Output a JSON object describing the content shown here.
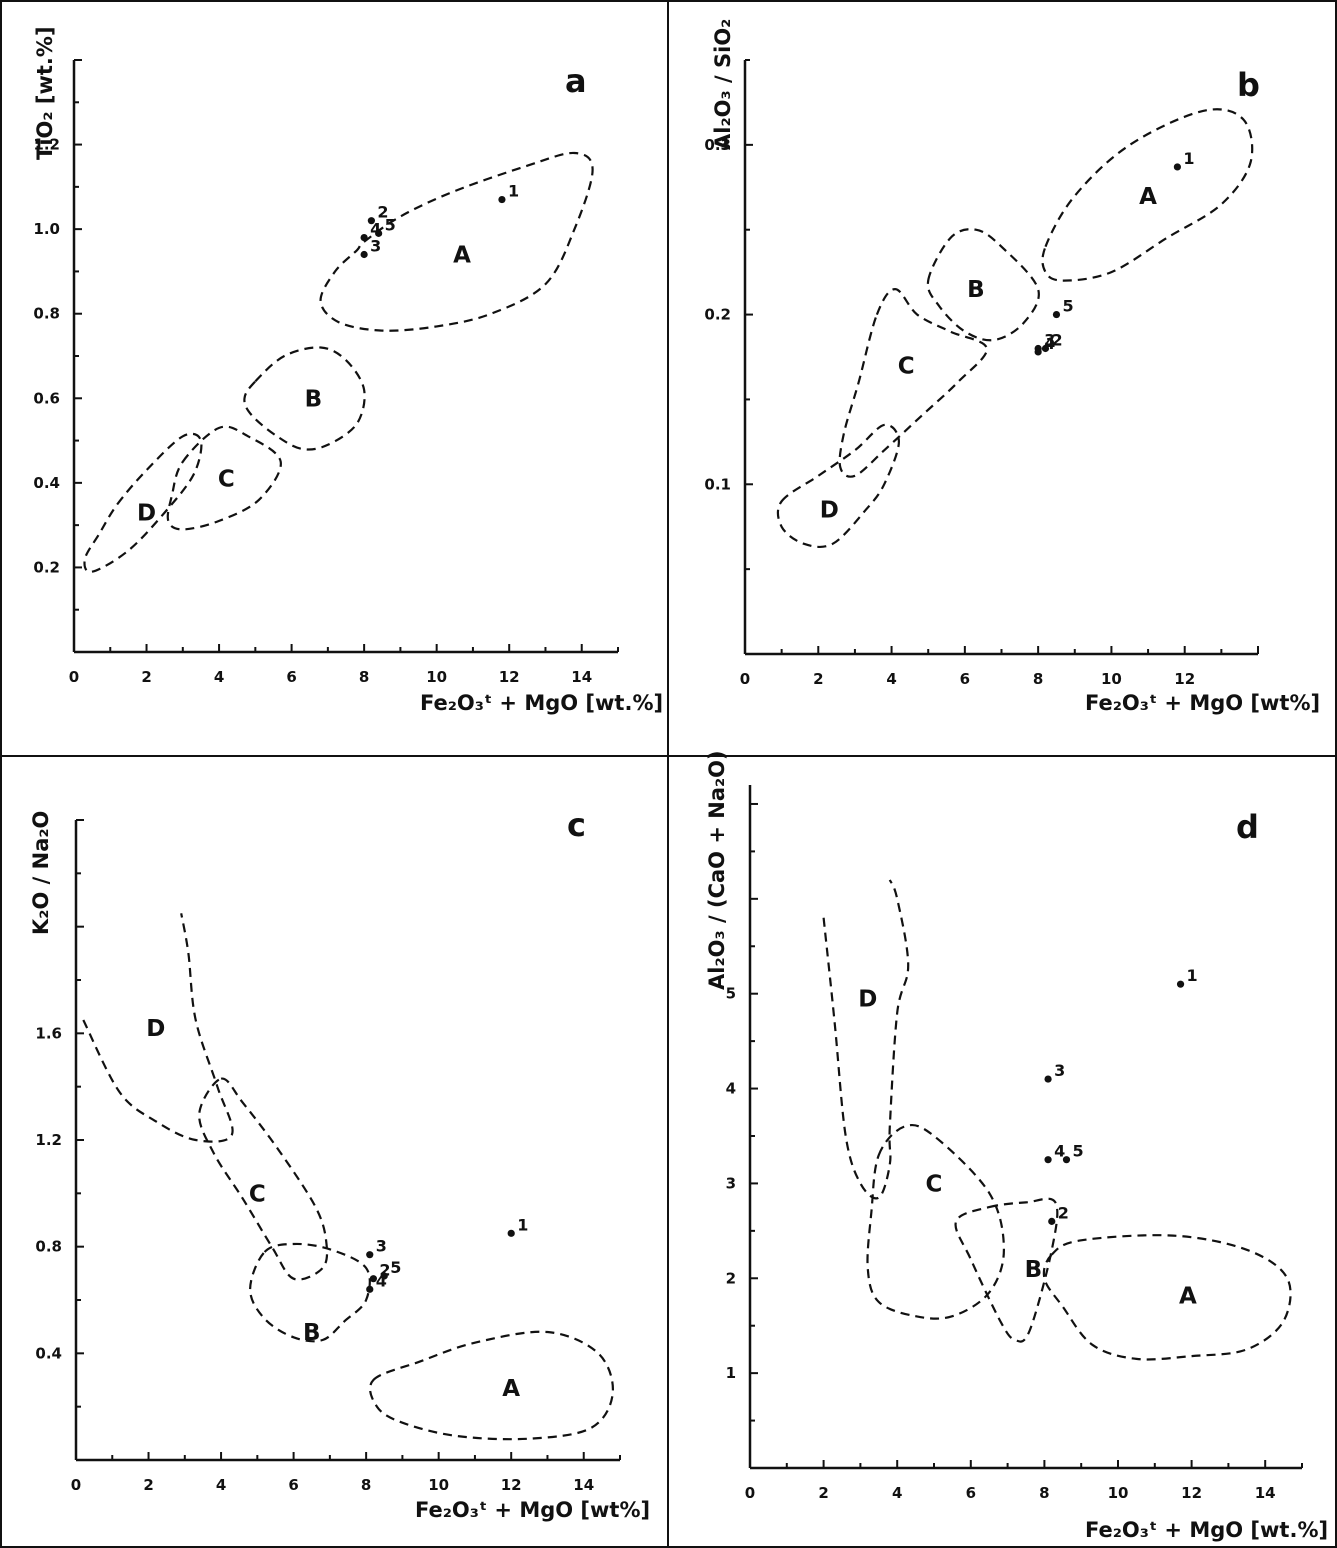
{
  "chart_data": [
    {
      "type": "scatter",
      "panel": "a",
      "xlabel": "Fe2O3t + MgO [wt.%]",
      "ylabel": "TiO2 [wt.%]",
      "xlim": [
        0,
        15
      ],
      "ylim": [
        0,
        1.4
      ],
      "xticks": [
        0,
        2,
        4,
        6,
        8,
        10,
        12,
        14
      ],
      "yticks": [
        0.2,
        0.4,
        0.6,
        0.8,
        1.0,
        1.2
      ],
      "grid": false,
      "points": [
        {
          "label": "1",
          "x": 11.8,
          "y": 1.07
        },
        {
          "label": "2",
          "x": 8.2,
          "y": 1.02
        },
        {
          "label": "3",
          "x": 8.0,
          "y": 0.94
        },
        {
          "label": "4",
          "x": 8.0,
          "y": 0.98
        },
        {
          "label": "5",
          "x": 8.4,
          "y": 0.99
        }
      ],
      "fields": [
        {
          "label": "A",
          "label_xy": [
            10.7,
            0.94
          ],
          "outline": [
            [
              8.0,
              0.97
            ],
            [
              9.0,
              1.03
            ],
            [
              10.5,
              1.09
            ],
            [
              12.5,
              1.15
            ],
            [
              13.8,
              1.18
            ],
            [
              14.3,
              1.14
            ],
            [
              13.8,
              1.0
            ],
            [
              13.0,
              0.87
            ],
            [
              11.5,
              0.8
            ],
            [
              10.0,
              0.77
            ],
            [
              8.5,
              0.76
            ],
            [
              7.3,
              0.78
            ],
            [
              6.8,
              0.83
            ],
            [
              7.2,
              0.9
            ],
            [
              7.8,
              0.95
            ]
          ]
        },
        {
          "label": "B",
          "label_xy": [
            6.6,
            0.6
          ],
          "outline": [
            [
              5.0,
              0.64
            ],
            [
              5.8,
              0.7
            ],
            [
              6.8,
              0.72
            ],
            [
              7.5,
              0.69
            ],
            [
              8.0,
              0.62
            ],
            [
              7.8,
              0.54
            ],
            [
              7.0,
              0.49
            ],
            [
              6.3,
              0.48
            ],
            [
              5.6,
              0.51
            ],
            [
              4.9,
              0.56
            ],
            [
              4.7,
              0.6
            ]
          ]
        },
        {
          "label": "C",
          "label_xy": [
            4.2,
            0.41
          ],
          "outline": [
            [
              3.0,
              0.45
            ],
            [
              4.0,
              0.53
            ],
            [
              4.8,
              0.51
            ],
            [
              5.7,
              0.45
            ],
            [
              5.1,
              0.36
            ],
            [
              4.0,
              0.31
            ],
            [
              3.0,
              0.29
            ],
            [
              2.6,
              0.31
            ],
            [
              2.7,
              0.37
            ]
          ]
        },
        {
          "label": "D",
          "label_xy": [
            2.0,
            0.33
          ],
          "outline": [
            [
              1.2,
              0.35
            ],
            [
              2.0,
              0.43
            ],
            [
              3.0,
              0.51
            ],
            [
              3.5,
              0.5
            ],
            [
              3.3,
              0.42
            ],
            [
              2.5,
              0.33
            ],
            [
              1.5,
              0.24
            ],
            [
              0.5,
              0.19
            ],
            [
              0.3,
              0.22
            ],
            [
              0.7,
              0.28
            ]
          ]
        }
      ]
    },
    {
      "type": "scatter",
      "panel": "b",
      "xlabel": "Fe2O3t + MgO [wt%]",
      "ylabel": "Al2O3 / SiO2",
      "xlim": [
        0,
        14
      ],
      "ylim": [
        0,
        0.35
      ],
      "xticks": [
        0,
        2,
        4,
        6,
        8,
        10,
        12
      ],
      "yticks": [
        0.1,
        0.2,
        0.3
      ],
      "grid": false,
      "points": [
        {
          "label": "1",
          "x": 11.8,
          "y": 0.287
        },
        {
          "label": "2",
          "x": 8.2,
          "y": 0.18
        },
        {
          "label": "3",
          "x": 8.0,
          "y": 0.18
        },
        {
          "label": "4",
          "x": 8.0,
          "y": 0.178
        },
        {
          "label": "5",
          "x": 8.5,
          "y": 0.2
        }
      ],
      "fields": [
        {
          "label": "A",
          "label_xy": [
            11.0,
            0.27
          ],
          "outline": [
            [
              8.2,
              0.24
            ],
            [
              9.0,
              0.27
            ],
            [
              10.5,
              0.3
            ],
            [
              12.5,
              0.32
            ],
            [
              13.6,
              0.315
            ],
            [
              13.8,
              0.29
            ],
            [
              13.0,
              0.265
            ],
            [
              11.5,
              0.245
            ],
            [
              10.0,
              0.225
            ],
            [
              8.7,
              0.22
            ],
            [
              8.2,
              0.225
            ]
          ]
        },
        {
          "label": "B",
          "label_xy": [
            6.3,
            0.215
          ],
          "outline": [
            [
              5.0,
              0.22
            ],
            [
              5.6,
              0.245
            ],
            [
              6.3,
              0.25
            ],
            [
              7.0,
              0.24
            ],
            [
              8.0,
              0.215
            ],
            [
              7.6,
              0.195
            ],
            [
              6.8,
              0.185
            ],
            [
              6.0,
              0.19
            ],
            [
              5.3,
              0.205
            ]
          ]
        },
        {
          "label": "C",
          "label_xy": [
            4.4,
            0.17
          ],
          "outline": [
            [
              3.6,
              0.2
            ],
            [
              4.1,
              0.215
            ],
            [
              4.7,
              0.2
            ],
            [
              5.6,
              0.19
            ],
            [
              6.6,
              0.18
            ],
            [
              5.8,
              0.16
            ],
            [
              4.8,
              0.14
            ],
            [
              3.8,
              0.12
            ],
            [
              3.0,
              0.105
            ],
            [
              2.6,
              0.11
            ],
            [
              2.7,
              0.13
            ],
            [
              3.1,
              0.16
            ]
          ]
        },
        {
          "label": "D",
          "label_xy": [
            2.3,
            0.085
          ],
          "outline": [
            [
              1.0,
              0.09
            ],
            [
              2.0,
              0.105
            ],
            [
              3.0,
              0.12
            ],
            [
              3.8,
              0.135
            ],
            [
              4.2,
              0.125
            ],
            [
              3.8,
              0.1
            ],
            [
              3.3,
              0.085
            ],
            [
              2.4,
              0.065
            ],
            [
              1.6,
              0.065
            ],
            [
              1.0,
              0.075
            ]
          ]
        }
      ]
    },
    {
      "type": "scatter",
      "panel": "c",
      "xlabel": "Fe2O3t + MgO [wt%]",
      "ylabel": "K2O / Na2O",
      "xlim": [
        0,
        15
      ],
      "ylim": [
        0,
        2.4
      ],
      "xticks": [
        0,
        2,
        4,
        6,
        8,
        10,
        12,
        14
      ],
      "yticks": [
        0.4,
        0.8,
        1.2,
        1.6
      ],
      "grid": false,
      "points": [
        {
          "label": "1",
          "x": 12.0,
          "y": 0.85
        },
        {
          "label": "2",
          "x": 8.2,
          "y": 0.68
        },
        {
          "label": "3",
          "x": 8.1,
          "y": 0.77
        },
        {
          "label": "4",
          "x": 8.1,
          "y": 0.64
        },
        {
          "label": "5",
          "x": 8.5,
          "y": 0.69
        }
      ],
      "fields": [
        {
          "label": "A",
          "label_xy": [
            12.0,
            0.27
          ],
          "outline": [
            [
              8.2,
              0.3
            ],
            [
              9.5,
              0.37
            ],
            [
              11.0,
              0.44
            ],
            [
              13.0,
              0.48
            ],
            [
              14.4,
              0.4
            ],
            [
              14.8,
              0.25
            ],
            [
              14.2,
              0.12
            ],
            [
              12.5,
              0.08
            ],
            [
              10.5,
              0.09
            ],
            [
              9.0,
              0.14
            ],
            [
              8.3,
              0.2
            ]
          ]
        },
        {
          "label": "B",
          "label_xy": [
            6.5,
            0.48
          ],
          "outline": [
            [
              5.2,
              0.78
            ],
            [
              6.0,
              0.81
            ],
            [
              7.0,
              0.79
            ],
            [
              8.0,
              0.72
            ],
            [
              8.0,
              0.6
            ],
            [
              7.4,
              0.52
            ],
            [
              6.8,
              0.45
            ],
            [
              6.0,
              0.46
            ],
            [
              5.2,
              0.53
            ],
            [
              4.8,
              0.64
            ]
          ]
        },
        {
          "label": "C",
          "label_xy": [
            5.0,
            1.0
          ],
          "outline": [
            [
              4.0,
              1.43
            ],
            [
              4.6,
              1.34
            ],
            [
              5.6,
              1.16
            ],
            [
              6.6,
              0.95
            ],
            [
              6.9,
              0.82
            ],
            [
              6.8,
              0.72
            ],
            [
              6.0,
              0.68
            ],
            [
              5.4,
              0.8
            ],
            [
              4.6,
              0.98
            ],
            [
              3.8,
              1.15
            ],
            [
              3.4,
              1.3
            ]
          ]
        },
        {
          "label": "D",
          "label_xy": [
            2.2,
            1.62
          ],
          "outline": [
            [
              0.2,
              1.65
            ],
            [
              1.2,
              1.38
            ],
            [
              2.2,
              1.27
            ],
            [
              3.3,
              1.2
            ],
            [
              4.3,
              1.22
            ],
            [
              3.9,
              1.4
            ],
            [
              3.3,
              1.65
            ],
            [
              3.1,
              1.9
            ],
            [
              2.9,
              2.05
            ]
          ],
          "open": true
        }
      ]
    },
    {
      "type": "scatter",
      "panel": "d",
      "xlabel": "Fe2O3t + MgO [wt.%]",
      "ylabel": "Al2O3 / (CaO + Na2O)",
      "xlim": [
        0,
        15
      ],
      "ylim": [
        0,
        7.2
      ],
      "xticks": [
        0,
        2,
        4,
        6,
        8,
        10,
        12,
        14
      ],
      "yticks": [
        1,
        2,
        3,
        4,
        5
      ],
      "grid": false,
      "points": [
        {
          "label": "1",
          "x": 11.7,
          "y": 5.1
        },
        {
          "label": "2",
          "x": 8.2,
          "y": 2.6
        },
        {
          "label": "3",
          "x": 8.1,
          "y": 4.1
        },
        {
          "label": "4",
          "x": 8.1,
          "y": 3.25
        },
        {
          "label": "5",
          "x": 8.6,
          "y": 3.25
        }
      ],
      "fields": [
        {
          "label": "A",
          "label_xy": [
            11.9,
            1.82
          ],
          "outline": [
            [
              8.2,
              2.25
            ],
            [
              9.0,
              2.4
            ],
            [
              11.5,
              2.45
            ],
            [
              13.5,
              2.3
            ],
            [
              14.6,
              2.0
            ],
            [
              14.5,
              1.55
            ],
            [
              13.5,
              1.25
            ],
            [
              12.0,
              1.18
            ],
            [
              10.5,
              1.15
            ],
            [
              9.3,
              1.3
            ],
            [
              8.5,
              1.7
            ],
            [
              8.0,
              2.0
            ]
          ]
        },
        {
          "label": "B",
          "label_xy": [
            7.7,
            2.1
          ],
          "outline": [
            [
              6.5,
              2.75
            ],
            [
              7.5,
              2.8
            ],
            [
              8.3,
              2.8
            ],
            [
              8.2,
              2.3
            ],
            [
              7.6,
              1.45
            ],
            [
              7.2,
              1.35
            ],
            [
              6.8,
              1.55
            ],
            [
              6.0,
              2.2
            ],
            [
              5.6,
              2.6
            ]
          ]
        },
        {
          "label": "C",
          "label_xy": [
            5.0,
            3.0
          ],
          "outline": [
            [
              3.5,
              3.3
            ],
            [
              4.2,
              3.6
            ],
            [
              5.0,
              3.5
            ],
            [
              6.5,
              2.9
            ],
            [
              6.9,
              2.3
            ],
            [
              6.5,
              1.85
            ],
            [
              5.5,
              1.6
            ],
            [
              4.5,
              1.6
            ],
            [
              3.5,
              1.75
            ],
            [
              3.2,
              2.1
            ],
            [
              3.3,
              2.7
            ]
          ]
        },
        {
          "label": "D",
          "label_xy": [
            3.2,
            4.95
          ],
          "outline": [
            [
              2.0,
              5.8
            ],
            [
              2.3,
              4.7
            ],
            [
              2.6,
              3.5
            ],
            [
              3.0,
              3.0
            ],
            [
              3.5,
              2.85
            ],
            [
              3.8,
              3.2
            ],
            [
              3.8,
              3.6
            ],
            [
              4.0,
              4.8
            ],
            [
              4.3,
              5.3
            ],
            [
              4.0,
              6.0
            ],
            [
              3.8,
              6.2
            ]
          ],
          "open": true
        }
      ]
    }
  ]
}
